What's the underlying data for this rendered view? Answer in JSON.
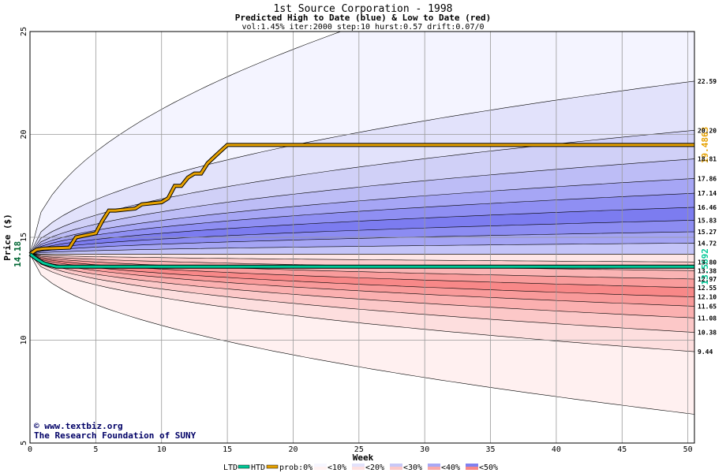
{
  "chart_data": {
    "type": "area",
    "title": "1st Source Corporation - 1998",
    "subtitle": "Predicted High to Date (blue) &  Low to Date (red)",
    "params": "vol:1.45% iter:2000 step:10 hurst:0.57 drift:0.07/0",
    "xlabel": "Week",
    "ylabel": "Price ($)",
    "xlim": [
      0,
      50.5
    ],
    "ylim": [
      5,
      25
    ],
    "x_ticks": [
      0,
      5,
      10,
      15,
      20,
      25,
      30,
      35,
      40,
      45,
      50
    ],
    "y_ticks": [
      5,
      10,
      15,
      20,
      25
    ],
    "start_price": 14.18,
    "start_label": "14.18",
    "grid": true,
    "high_quantiles": [
      {
        "end": 30.0,
        "fill": "#f4f4ff"
      },
      {
        "end": 22.59,
        "fill": "#e2e2fb"
      },
      {
        "end": 20.2,
        "fill": "#d0d0f7"
      },
      {
        "end": 18.81,
        "fill": "#bdbdf6"
      },
      {
        "end": 17.86,
        "fill": "#a6a6f5"
      },
      {
        "end": 17.14,
        "fill": "#8f8ff3"
      },
      {
        "end": 16.46,
        "fill": "#7c7cf0"
      },
      {
        "end": 15.83,
        "fill": "#8c8cf2"
      },
      {
        "end": 15.27,
        "fill": "#a4a4f4"
      },
      {
        "end": 14.72,
        "fill": "#c4c4f8"
      }
    ],
    "low_quantiles": [
      {
        "end": 6.4,
        "fill": "#fff0f0"
      },
      {
        "end": 9.44,
        "fill": "#fddede"
      },
      {
        "end": 10.38,
        "fill": "#fcc8c8"
      },
      {
        "end": 11.08,
        "fill": "#fbb0b0"
      },
      {
        "end": 11.65,
        "fill": "#f99a9a"
      },
      {
        "end": 12.1,
        "fill": "#f88888"
      },
      {
        "end": 12.55,
        "fill": "#f99c9c"
      },
      {
        "end": 12.97,
        "fill": "#fab4b4"
      },
      {
        "end": 13.38,
        "fill": "#fccccc"
      },
      {
        "end": 13.8,
        "fill": "#fee6e6"
      }
    ],
    "end_labels": [
      "22.59",
      "20.20",
      "18.81",
      "17.86",
      "17.14",
      "16.46",
      "15.83",
      "15.27",
      "14.72",
      "13.80",
      "13.38",
      "12.97",
      "12.55",
      "12.10",
      "11.65",
      "11.08",
      "10.38",
      "9.44"
    ],
    "series": [
      {
        "name": "HTD",
        "color": "#e6a100",
        "x": [
          0,
          0.5,
          1,
          3,
          3.5,
          5,
          5.5,
          6,
          6.5,
          8,
          8.5,
          10,
          10.5,
          11,
          11.5,
          12,
          12.5,
          13,
          13.5,
          14,
          14.5,
          15,
          50.5
        ],
        "values": [
          14.18,
          14.4,
          14.45,
          14.5,
          15.0,
          15.2,
          15.8,
          16.3,
          16.3,
          16.4,
          16.6,
          16.7,
          16.9,
          17.5,
          17.5,
          17.9,
          18.1,
          18.1,
          18.6,
          18.9,
          19.2,
          19.4863,
          19.4863
        ],
        "end_label": "19.4863"
      },
      {
        "name": "LTD",
        "color": "#00c896",
        "x": [
          0,
          0.5,
          1,
          1.5,
          2,
          50.5
        ],
        "values": [
          14.18,
          13.95,
          13.75,
          13.65,
          13.5692,
          13.5692
        ],
        "end_label": "13.5692"
      }
    ],
    "credit_lines": [
      "www.textbiz.org",
      "The Research Foundation of SUNY"
    ],
    "legend": {
      "placement": "bottom",
      "ltd_label": "LTD",
      "htd_label": "HTD",
      "prob_prefix": "prob:0%",
      "buckets": [
        {
          "label": "<10%",
          "fill": "#f6f6ff",
          "fill2": "#fff2f2"
        },
        {
          "label": "<20%",
          "fill": "#e2e2fb",
          "fill2": "#fde0e0"
        },
        {
          "label": "<30%",
          "fill": "#c8c8f7",
          "fill2": "#fbc8c8"
        },
        {
          "label": "<40%",
          "fill": "#a8a8f5",
          "fill2": "#f9a8a8"
        },
        {
          "label": "<50%",
          "fill": "#8080f0",
          "fill2": "#f78888"
        }
      ]
    }
  }
}
